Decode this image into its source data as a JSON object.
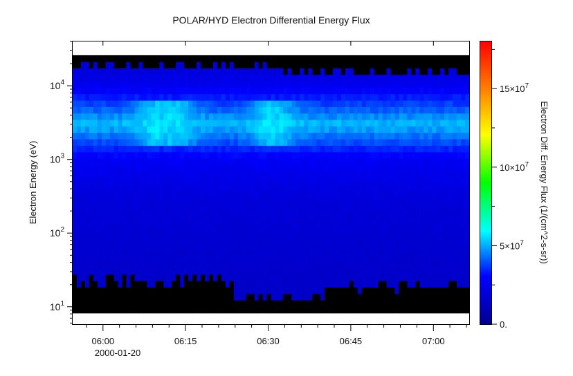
{
  "chart_data": {
    "type": "heatmap",
    "title": "POLAR/HYD  Electron Differential Energy Flux",
    "ylabel": "Electron Energy (eV)",
    "colorbar_label": "Electron Diff. Energy Flux (1/(cm^2-s-sr))",
    "y_scale": "log",
    "ylim": [
      5.8,
      40000
    ],
    "x_ticks": [
      {
        "time": "06:00",
        "label": "06:00"
      },
      {
        "time": "06:15",
        "label": "06:15"
      },
      {
        "time": "06:30",
        "label": "06:30"
      },
      {
        "time": "06:45",
        "label": "06:45"
      },
      {
        "time": "07:00",
        "label": "07:00"
      }
    ],
    "x_date_label": "2000-01-20",
    "xlim": [
      "05:54:30",
      "07:06:30"
    ],
    "y_ticks": [
      {
        "value": 10,
        "base": "10",
        "exp": "1"
      },
      {
        "value": 100,
        "base": "10",
        "exp": "2"
      },
      {
        "value": 1000,
        "base": "10",
        "exp": "3"
      },
      {
        "value": 10000,
        "base": "10",
        "exp": "4"
      }
    ],
    "colorbar_ticks": [
      {
        "value": 0,
        "label": "0."
      },
      {
        "value": 50000000,
        "label": "5×10",
        "exp": "7"
      },
      {
        "value": 100000000,
        "label": "10×10",
        "exp": "7"
      },
      {
        "value": 150000000,
        "label": "15×10",
        "exp": "7"
      }
    ],
    "colorbar_range": [
      0,
      180000000
    ],
    "colorscale": [
      "#00008f",
      "#0000ff",
      "#00ffff",
      "#00ff00",
      "#ffff00",
      "#ff8000",
      "#ff0000"
    ],
    "fill_color_no_data": "#000000",
    "data_energy_range_eV": {
      "top_by_time": [
        {
          "from": "05:54:30",
          "to": "06:00:00",
          "value": 20000
        },
        {
          "from": "06:00:00",
          "to": "06:30:00",
          "value": 19000
        },
        {
          "from": "06:30:00",
          "to": "07:06:30",
          "value": 15500
        }
      ],
      "bottom_by_time": [
        {
          "from": "05:54:30",
          "to": "06:24:00",
          "value": 22
        },
        {
          "from": "06:24:00",
          "to": "06:40:00",
          "value": 14
        },
        {
          "from": "06:40:00",
          "to": "07:06:30",
          "value": 19
        }
      ]
    },
    "flux_profile": {
      "description_values_energy_eV": [
        10,
        30,
        100,
        300,
        1000,
        2000,
        3000,
        5000,
        10000,
        20000
      ],
      "typical_flux": [
        15000000,
        16000000,
        18000000,
        20000000,
        27000000,
        42000000,
        52000000,
        40000000,
        26000000,
        18000000
      ],
      "peak_times": [
        "06:10:00",
        "06:13:00",
        "06:31:00"
      ],
      "peak_flux": 60000000
    }
  }
}
